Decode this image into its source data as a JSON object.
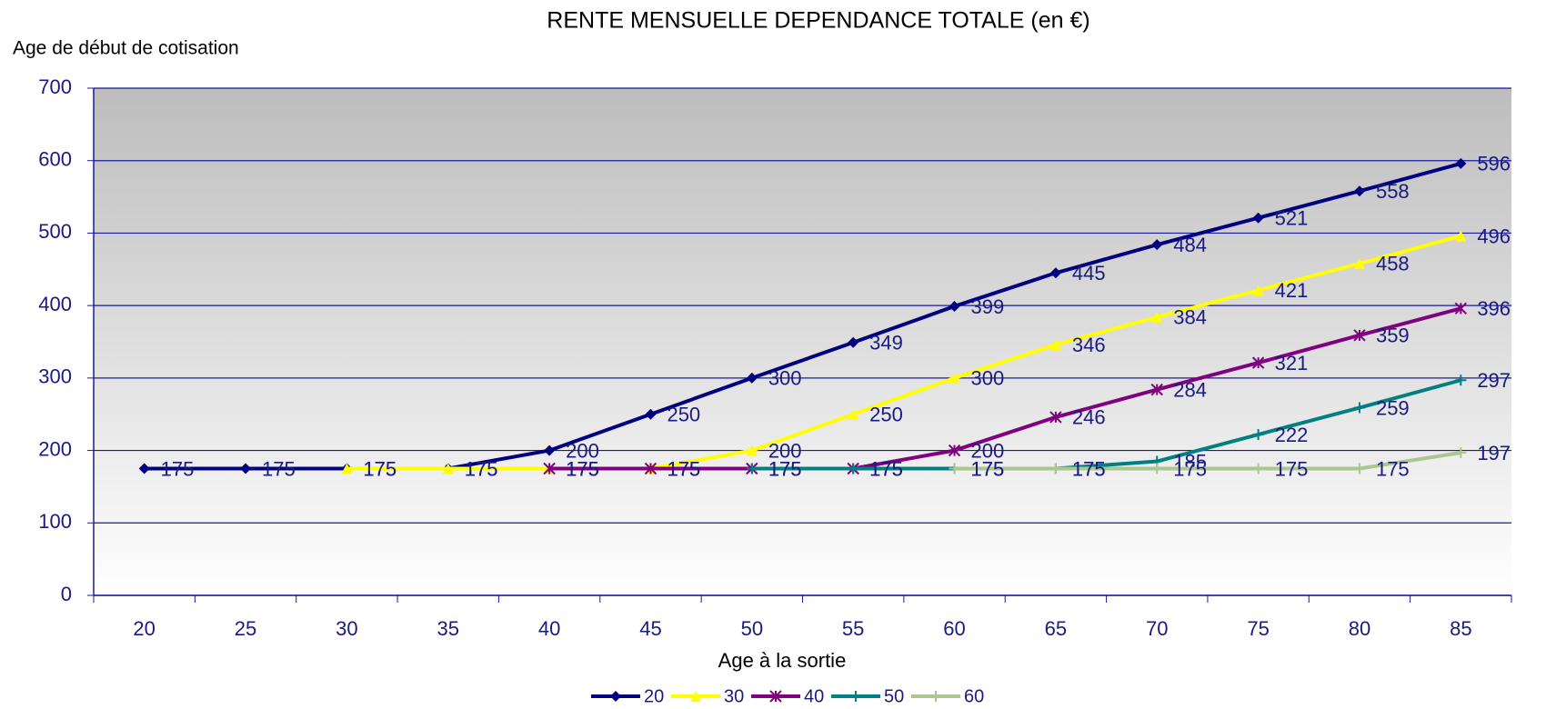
{
  "chart_data": {
    "type": "line",
    "title": "RENTE MENSUELLE DEPENDANCE TOTALE (en €)",
    "y_label": "Age de début de cotisation",
    "x_label": "Age à la sortie",
    "categories": [
      20,
      25,
      30,
      35,
      40,
      45,
      50,
      55,
      60,
      65,
      70,
      75,
      80,
      85
    ],
    "series": [
      {
        "name": "20",
        "color": "#000080",
        "values": [
          175,
          175,
          175,
          175,
          200,
          250,
          300,
          349,
          399,
          445,
          484,
          521,
          558,
          596
        ]
      },
      {
        "name": "30",
        "color": "#ffff00",
        "values": [
          null,
          null,
          175,
          175,
          175,
          175,
          200,
          250,
          300,
          346,
          384,
          421,
          458,
          496
        ]
      },
      {
        "name": "40",
        "color": "#800080",
        "values": [
          null,
          null,
          null,
          null,
          175,
          175,
          175,
          175,
          200,
          246,
          284,
          321,
          359,
          396
        ]
      },
      {
        "name": "50",
        "color": "#008080",
        "values": [
          null,
          null,
          null,
          null,
          null,
          null,
          175,
          175,
          175,
          175,
          185,
          222,
          259,
          297
        ]
      },
      {
        "name": "60",
        "color": "#a9c78e",
        "values": [
          null,
          null,
          null,
          null,
          null,
          null,
          null,
          null,
          175,
          175,
          175,
          175,
          175,
          197
        ]
      }
    ],
    "ylim": [
      0,
      700
    ],
    "yticks": [
      0,
      100,
      200,
      300,
      400,
      500,
      600,
      700
    ],
    "grid": true,
    "legend": "bottom"
  }
}
